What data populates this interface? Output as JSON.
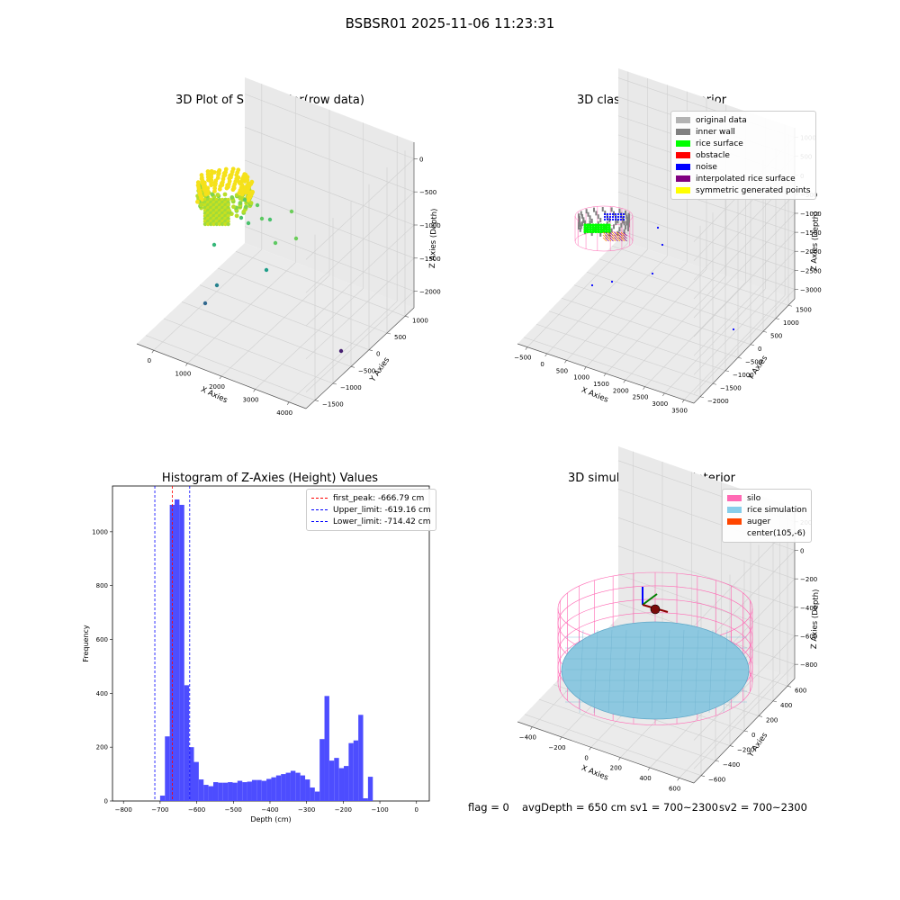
{
  "suptitle": "BSBSR01 2025-11-06 11:23:31",
  "panels": {
    "raw": {
      "title": "3D Plot of Silo Interior(row data)",
      "xlabel": "X Axies",
      "ylabel": "Y Axies",
      "zlabel": "Z Axies (Depth)",
      "xticks": [
        "0",
        "1000",
        "2000",
        "3000",
        "4000"
      ],
      "yticks": [
        "1000",
        "500",
        "0",
        "−500",
        "−1000",
        "−1500"
      ],
      "zticks": [
        "0",
        "−500",
        "−1000",
        "−1500",
        "−2000"
      ]
    },
    "classify": {
      "title": "3D classify of Silo Interior",
      "xlabel": "X Axies",
      "ylabel": "Y Axies",
      "zlabel": "Z Axies (Depth)",
      "xticks": [
        "−500",
        "0",
        "500",
        "1000",
        "1500",
        "2000",
        "2500",
        "3000",
        "3500"
      ],
      "yticks": [
        "1500",
        "1000",
        "500",
        "0",
        "−500",
        "−1000",
        "−1500",
        "−2000"
      ],
      "zticks": [
        "1000",
        "500",
        "0",
        "−500",
        "−1000",
        "−1500",
        "−2000",
        "−2500",
        "−3000"
      ],
      "legend": [
        {
          "label": "original data",
          "color": "#b3b3b3"
        },
        {
          "label": "inner wall",
          "color": "#808080"
        },
        {
          "label": "rice surface",
          "color": "#00ff00"
        },
        {
          "label": "obstacle",
          "color": "#ff0000"
        },
        {
          "label": "noise",
          "color": "#0000ff"
        },
        {
          "label": "interpolated rice surface",
          "color": "#800080"
        },
        {
          "label": "symmetric generated points",
          "color": "#ffff00"
        }
      ]
    },
    "histogram": {
      "title": "Histogram of Z-Axies (Height) Values",
      "xlabel": "Depth (cm)",
      "ylabel": "Frequency",
      "xticks": [
        "−800",
        "−700",
        "−600",
        "−500",
        "−400",
        "−300",
        "−200",
        "−100",
        "0"
      ],
      "yticks": [
        "0",
        "200",
        "400",
        "600",
        "800",
        "1000"
      ],
      "legend": [
        {
          "label": "first_peak: -666.79 cm",
          "color": "#ff0000"
        },
        {
          "label": "Upper_limit: -619.16 cm",
          "color": "#0000ff"
        },
        {
          "label": "Lower_limit: -714.42 cm",
          "color": "#0000ff"
        }
      ]
    },
    "simulation": {
      "title": "3D simulation of Silo Interior",
      "xlabel": "X Axies",
      "ylabel": "Y Axies",
      "zlabel": "Z Axies (Depth)",
      "xticks": [
        "−400",
        "−200",
        "0",
        "200",
        "400",
        "600"
      ],
      "yticks": [
        "600",
        "400",
        "200",
        "0",
        "−200",
        "−400",
        "−600"
      ],
      "zticks": [
        "200",
        "0",
        "−200",
        "−400",
        "−600",
        "−800"
      ],
      "legend": [
        {
          "label": "silo",
          "color": "#ff69b4"
        },
        {
          "label": "rice simulation",
          "color": "#87ceeb"
        },
        {
          "label": "auger",
          "color": "#ff4500"
        },
        {
          "label": "center(105,-6)",
          "color": ""
        }
      ]
    }
  },
  "footer": {
    "flag": "flag = 0",
    "avg_depth": "avgDepth = 650 cm",
    "sv1": "sv1 = 700~2300",
    "sv2": "sv2 = 700~2300"
  },
  "chart_data": [
    {
      "type": "scatter",
      "title": "3D Plot of Silo Interior(row data)",
      "xlabel": "X Axies",
      "ylabel": "Y Axies",
      "zlabel": "Z Axies (Depth)",
      "xlim": [
        -600,
        4000
      ],
      "ylim": [
        -1600,
        1200
      ],
      "zlim": [
        -2300,
        100
      ]
    },
    {
      "type": "scatter",
      "title": "3D classify of Silo Interior",
      "xlabel": "X Axies",
      "ylabel": "Y Axies",
      "zlabel": "Z Axies (Depth)",
      "xlim": [
        -500,
        3700
      ],
      "ylim": [
        -2200,
        1700
      ],
      "zlim": [
        -3100,
        1100
      ],
      "legend": [
        "original data",
        "inner wall",
        "rice surface",
        "obstacle",
        "noise",
        "interpolated rice surface",
        "symmetric generated points"
      ],
      "legend_position": "top-right"
    },
    {
      "type": "bar",
      "title": "Histogram of Z-Axies (Height) Values",
      "xlabel": "Depth (cm)",
      "ylabel": "Frequency",
      "xlim": [
        -830,
        35
      ],
      "ylim": [
        0,
        1170
      ],
      "bin_width": 13.2,
      "bin_start": -700,
      "values": [
        20,
        240,
        1100,
        1120,
        1100,
        430,
        200,
        145,
        80,
        60,
        55,
        70,
        68,
        68,
        70,
        68,
        75,
        70,
        72,
        78,
        78,
        75,
        82,
        88,
        95,
        100,
        105,
        112,
        105,
        95,
        80,
        50,
        35,
        230,
        390,
        150,
        160,
        122,
        130,
        215,
        225,
        320,
        10,
        90
      ],
      "vlines": [
        {
          "label": "first_peak",
          "x": -666.79,
          "color": "#ff0000"
        },
        {
          "label": "Upper_limit",
          "x": -619.16,
          "color": "#0000ff"
        },
        {
          "label": "Lower_limit",
          "x": -714.42,
          "color": "#0000ff"
        }
      ],
      "legend_position": "top-right"
    },
    {
      "type": "scatter",
      "title": "3D simulation of Silo Interior",
      "xlabel": "X Axies",
      "ylabel": "Y Axies",
      "zlabel": "Z Axies (Depth)",
      "xlim": [
        -500,
        750
      ],
      "ylim": [
        -700,
        700
      ],
      "zlim": [
        -950,
        300
      ],
      "legend": [
        "silo",
        "rice simulation",
        "auger",
        "center(105,-6)"
      ],
      "legend_position": "top-right"
    }
  ]
}
